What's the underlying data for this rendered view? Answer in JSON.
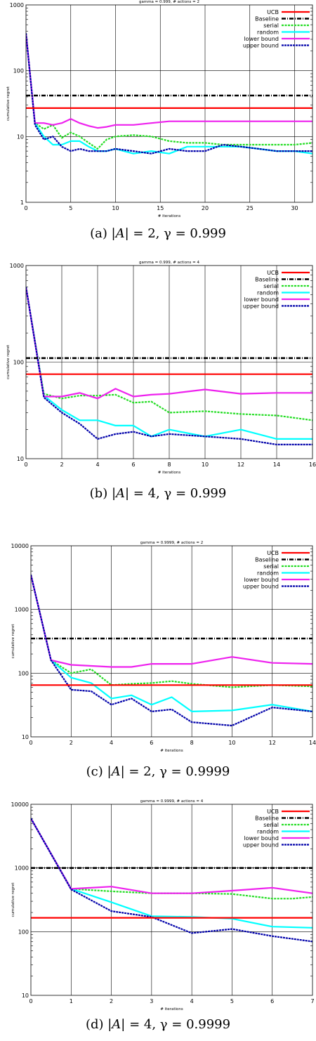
{
  "colors": {
    "UCB": "#ff0000",
    "Baseline": "#000000",
    "serial": "#22dd22",
    "random": "#00ffff",
    "lower bound": "#ee22ee",
    "upper bound": "#0000aa"
  },
  "chart_data": [
    {
      "type": "line",
      "title": "gamma = 0.999, # actions = 2",
      "xlabel": "# iterations",
      "ylabel": "cumulative regret",
      "yscale": "log",
      "xlim": [
        0,
        32
      ],
      "ylim": [
        1,
        1000
      ],
      "xticks": [
        "0",
        "5",
        "10",
        "15",
        "20",
        "25",
        "30"
      ],
      "yticks": [
        "1",
        "10",
        "100",
        "1000"
      ],
      "grid": "x and decades",
      "legend": "top-right",
      "caption": {
        "pre": "(a) |",
        "sym": "A",
        "post": "| = 2, γ = 0.999"
      },
      "series": [
        {
          "name": "UCB",
          "x": [
            0,
            32
          ],
          "y": [
            27,
            27
          ]
        },
        {
          "name": "Baseline",
          "x": [
            0,
            32
          ],
          "y": [
            42,
            42
          ]
        },
        {
          "name": "serial",
          "x": [
            0,
            1,
            2,
            3,
            4,
            5,
            6,
            7,
            8,
            9,
            10,
            12,
            14,
            16,
            18,
            20,
            22,
            24,
            26,
            28,
            30,
            32
          ],
          "y": [
            370,
            16,
            13,
            15,
            9.5,
            11.5,
            10,
            8,
            6.5,
            9,
            10,
            10.5,
            10,
            8.5,
            8,
            8,
            7.5,
            7.5,
            7.5,
            7.5,
            7.5,
            8
          ]
        },
        {
          "name": "random",
          "x": [
            0,
            1,
            2,
            3,
            4,
            5,
            6,
            7,
            8,
            9,
            10,
            12,
            14,
            16,
            18,
            20,
            22,
            24,
            26,
            28,
            30,
            32
          ],
          "y": [
            370,
            16,
            10,
            7.5,
            7.5,
            8.5,
            8.5,
            7,
            6,
            6,
            6.5,
            5.5,
            6,
            5.5,
            7,
            7,
            7,
            7,
            6.5,
            6,
            6,
            5.5
          ]
        },
        {
          "name": "lower bound",
          "x": [
            0,
            1,
            2,
            3,
            4,
            5,
            6,
            7,
            8,
            9,
            10,
            12,
            14,
            16,
            18,
            20,
            22,
            24,
            26,
            28,
            30,
            32
          ],
          "y": [
            370,
            16,
            16,
            15,
            16,
            18.5,
            16,
            14.5,
            13.5,
            14,
            15,
            15,
            16,
            17,
            17,
            17,
            17,
            17,
            17,
            17,
            17,
            17
          ]
        },
        {
          "name": "upper bound",
          "x": [
            0,
            1,
            2,
            3,
            4,
            5,
            6,
            7,
            8,
            9,
            10,
            12,
            14,
            16,
            18,
            20,
            22,
            24,
            26,
            28,
            30,
            32
          ],
          "y": [
            370,
            15,
            9,
            10,
            7,
            6,
            6.5,
            6,
            6,
            6,
            6.5,
            6,
            5.5,
            6.5,
            6,
            6,
            7.5,
            7,
            6.5,
            6,
            6,
            6
          ]
        }
      ]
    },
    {
      "type": "line",
      "title": "gamma = 0.999, # actions = 4",
      "xlabel": "# iterations",
      "ylabel": "cumulative regret",
      "yscale": "log",
      "xlim": [
        0,
        16
      ],
      "ylim": [
        10,
        1000
      ],
      "xticks": [
        "0",
        "2",
        "4",
        "6",
        "8",
        "10",
        "12",
        "14",
        "16"
      ],
      "yticks": [
        "10",
        "100",
        "1000"
      ],
      "grid": "x and decades",
      "legend": "top-right",
      "caption": {
        "pre": "(b) |",
        "sym": "A",
        "post": "| = 4, γ = 0.999"
      },
      "series": [
        {
          "name": "UCB",
          "x": [
            0,
            16
          ],
          "y": [
            75,
            75
          ]
        },
        {
          "name": "Baseline",
          "x": [
            0,
            16
          ],
          "y": [
            110,
            110
          ]
        },
        {
          "name": "serial",
          "x": [
            0,
            1,
            2,
            3,
            4,
            5,
            6,
            7,
            8,
            10,
            12,
            14,
            16
          ],
          "y": [
            600,
            47,
            42,
            45,
            45,
            46,
            38,
            39,
            30,
            31,
            29,
            28,
            25
          ]
        },
        {
          "name": "random",
          "x": [
            0,
            1,
            2,
            3,
            4,
            5,
            6,
            7,
            8,
            10,
            12,
            14,
            16
          ],
          "y": [
            600,
            45,
            32,
            25,
            25,
            22,
            22,
            17,
            20,
            17,
            20,
            16,
            16
          ]
        },
        {
          "name": "lower bound",
          "x": [
            0,
            1,
            2,
            3,
            4,
            5,
            6,
            7,
            8,
            10,
            12,
            14,
            16
          ],
          "y": [
            600,
            44,
            44,
            48,
            42,
            53,
            44,
            46,
            47,
            52,
            47,
            48,
            48
          ]
        },
        {
          "name": "upper bound",
          "x": [
            0,
            1,
            2,
            3,
            4,
            5,
            6,
            7,
            8,
            10,
            12,
            14,
            16
          ],
          "y": [
            600,
            43,
            30,
            23,
            16,
            18,
            19,
            17,
            18,
            17,
            16,
            14,
            14
          ]
        }
      ]
    },
    {
      "type": "line",
      "title": "gamma = 0.9999, # actions = 2",
      "xlabel": "# iterations",
      "ylabel": "cumulative regret",
      "yscale": "log",
      "xlim": [
        0,
        14
      ],
      "ylim": [
        10,
        10000
      ],
      "xticks": [
        "0",
        "2",
        "4",
        "6",
        "8",
        "10",
        "12",
        "14"
      ],
      "yticks": [
        "10",
        "100",
        "1000",
        "10000"
      ],
      "grid": "x and decades",
      "legend": "top-right",
      "caption": {
        "pre": "(c) |",
        "sym": "A",
        "post": "| = 2, γ = 0.9999"
      },
      "series": [
        {
          "name": "UCB",
          "x": [
            0,
            14
          ],
          "y": [
            65,
            65
          ]
        },
        {
          "name": "Baseline",
          "x": [
            0,
            14
          ],
          "y": [
            350,
            350
          ]
        },
        {
          "name": "serial",
          "x": [
            0,
            1,
            2,
            3,
            4,
            5,
            6,
            7,
            8,
            10,
            12,
            14
          ],
          "y": [
            3500,
            160,
            100,
            115,
            65,
            68,
            70,
            75,
            68,
            60,
            65,
            62
          ]
        },
        {
          "name": "random",
          "x": [
            0,
            1,
            2,
            3,
            4,
            5,
            6,
            7,
            8,
            10,
            12,
            14
          ],
          "y": [
            3500,
            160,
            85,
            70,
            40,
            45,
            32,
            42,
            25,
            26,
            32,
            25
          ]
        },
        {
          "name": "lower bound",
          "x": [
            0,
            1,
            2,
            3,
            4,
            5,
            6,
            7,
            8,
            10,
            12,
            14
          ],
          "y": [
            3500,
            160,
            135,
            130,
            125,
            125,
            140,
            140,
            140,
            180,
            145,
            140
          ]
        },
        {
          "name": "upper bound",
          "x": [
            0,
            1,
            2,
            3,
            4,
            5,
            6,
            7,
            8,
            10,
            12,
            14
          ],
          "y": [
            3500,
            160,
            55,
            52,
            32,
            40,
            25,
            27,
            17,
            15,
            29,
            25
          ]
        }
      ]
    },
    {
      "type": "line",
      "title": "gamma = 0.9999, # actions = 4",
      "xlabel": "# iterations",
      "ylabel": "cumulative regret",
      "yscale": "log",
      "xlim": [
        0,
        7
      ],
      "ylim": [
        10,
        10000
      ],
      "xticks": [
        "0",
        "1",
        "2",
        "3",
        "4",
        "5",
        "6",
        "7"
      ],
      "yticks": [
        "10",
        "100",
        "1000",
        "10000"
      ],
      "grid": "x and decades",
      "legend": "top-right",
      "caption": {
        "pre": "(d) |",
        "sym": "A",
        "post": "| = 4, γ = 0.9999"
      },
      "series": [
        {
          "name": "UCB",
          "x": [
            0,
            7
          ],
          "y": [
            165,
            165
          ]
        },
        {
          "name": "Baseline",
          "x": [
            0,
            7
          ],
          "y": [
            1000,
            1000
          ]
        },
        {
          "name": "serial",
          "x": [
            0,
            1,
            2,
            3,
            4,
            5,
            6,
            6.5,
            7
          ],
          "y": [
            6000,
            470,
            430,
            400,
            400,
            390,
            330,
            330,
            350
          ]
        },
        {
          "name": "random",
          "x": [
            0,
            1,
            2,
            3,
            4,
            5,
            6,
            7
          ],
          "y": [
            6000,
            470,
            290,
            175,
            170,
            160,
            120,
            115
          ]
        },
        {
          "name": "lower bound",
          "x": [
            0,
            1,
            2,
            3,
            4,
            5,
            6,
            7
          ],
          "y": [
            6000,
            470,
            510,
            400,
            400,
            440,
            490,
            400
          ]
        },
        {
          "name": "upper bound",
          "x": [
            0,
            1,
            2,
            3,
            4,
            5,
            6,
            7
          ],
          "y": [
            6000,
            460,
            210,
            170,
            95,
            110,
            85,
            70
          ]
        }
      ]
    }
  ]
}
